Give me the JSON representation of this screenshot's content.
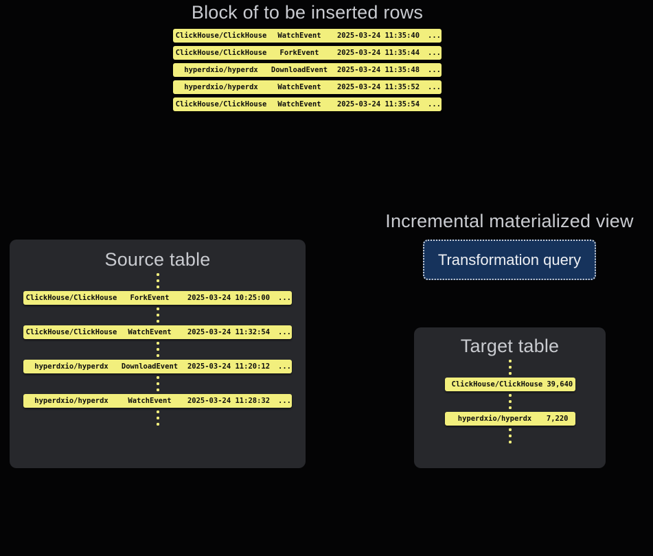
{
  "colors": {
    "background": "#040405",
    "panel": "#27282c",
    "row_yellow": "#f2ef7d",
    "title_text": "#c9cbd0",
    "button_background": "#16335c",
    "button_border": "#ccd2db",
    "button_text": "#edeff3"
  },
  "insert_block": {
    "title": "Block of to be inserted rows",
    "rows": [
      {
        "repo": "ClickHouse/ClickHouse",
        "event": "WatchEvent",
        "timestamp": "2025-03-24 11:35:40",
        "more": "..."
      },
      {
        "repo": "ClickHouse/ClickHouse",
        "event": "ForkEvent",
        "timestamp": "2025-03-24 11:35:44",
        "more": "..."
      },
      {
        "repo": "hyperdxio/hyperdx",
        "event": "DownloadEvent",
        "timestamp": "2025-03-24 11:35:48",
        "more": "..."
      },
      {
        "repo": "hyperdxio/hyperdx",
        "event": "WatchEvent",
        "timestamp": "2025-03-24 11:35:52",
        "more": "..."
      },
      {
        "repo": "ClickHouse/ClickHouse",
        "event": "WatchEvent",
        "timestamp": "2025-03-24 11:35:54",
        "more": "..."
      }
    ]
  },
  "source_table": {
    "title": "Source table",
    "rows": [
      {
        "repo": "ClickHouse/ClickHouse",
        "event": "ForkEvent",
        "timestamp": "2025-03-24 10:25:00",
        "more": "..."
      },
      {
        "repo": "ClickHouse/ClickHouse",
        "event": "WatchEvent",
        "timestamp": "2025-03-24 11:32:54",
        "more": "..."
      },
      {
        "repo": "hyperdxio/hyperdx",
        "event": "DownloadEvent",
        "timestamp": "2025-03-24 11:20:12",
        "more": "..."
      },
      {
        "repo": "hyperdxio/hyperdx",
        "event": "WatchEvent",
        "timestamp": "2025-03-24 11:28:32",
        "more": "..."
      }
    ]
  },
  "materialized_view": {
    "title": "Incremental materialized view",
    "button_label": "Transformation query"
  },
  "target_table": {
    "title": "Target table",
    "rows": [
      {
        "repo": "ClickHouse/ClickHouse",
        "count": "39,640"
      },
      {
        "repo": "hyperdxio/hyperdx",
        "count": "7,220"
      }
    ]
  }
}
